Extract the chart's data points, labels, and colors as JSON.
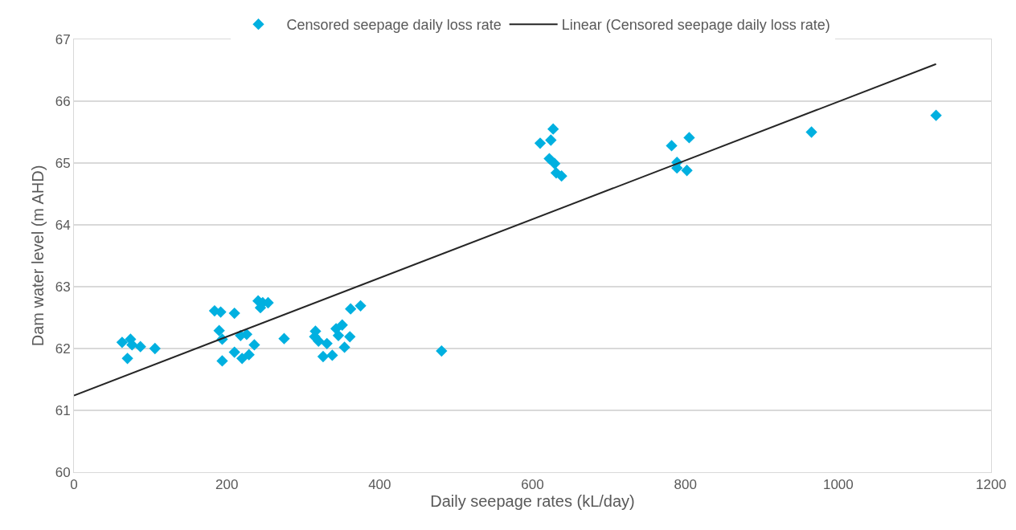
{
  "chart_data": {
    "type": "scatter",
    "xlabel": "Daily seepage rates (kL/day)",
    "ylabel": "Dam water level (m AHD)",
    "xlim": [
      0,
      1200
    ],
    "xticks": [
      0,
      200,
      400,
      600,
      800,
      1000,
      1200
    ],
    "ylim": [
      60,
      67
    ],
    "yticks": [
      60,
      61,
      62,
      63,
      64,
      65,
      66,
      67
    ],
    "grid": "y",
    "legend": "top",
    "marker": "diamond",
    "series": [
      {
        "name": "Censored seepage daily loss rate",
        "color": "#00b0e0",
        "x": [
          63,
          74,
          76,
          87,
          106,
          70,
          184,
          192,
          210,
          190,
          194,
          194,
          210,
          218,
          226,
          220,
          229,
          236,
          241,
          244,
          247,
          254,
          275,
          316,
          315,
          320,
          331,
          326,
          338,
          343,
          351,
          346,
          361,
          354,
          362,
          375,
          481,
          610,
          627,
          624,
          622,
          629,
          631,
          638,
          782,
          805,
          789,
          789,
          802,
          965,
          1128
        ],
        "values": [
          62.1,
          62.15,
          62.06,
          62.03,
          62.0,
          61.84,
          62.61,
          62.59,
          62.57,
          62.29,
          62.15,
          61.8,
          61.94,
          62.21,
          62.23,
          61.84,
          61.9,
          62.06,
          62.77,
          62.66,
          62.74,
          62.74,
          62.16,
          62.28,
          62.19,
          62.12,
          62.08,
          61.87,
          61.89,
          62.32,
          62.38,
          62.21,
          62.19,
          62.02,
          62.64,
          62.69,
          61.96,
          65.32,
          65.55,
          65.37,
          65.07,
          64.99,
          64.84,
          64.79,
          65.28,
          65.41,
          65.01,
          64.92,
          64.88,
          65.5,
          65.77
        ]
      },
      {
        "name": "Linear (Censored seepage daily loss rate)",
        "color": "#262626",
        "type": "line",
        "line_style": "solid",
        "marker": "none",
        "x": [
          0,
          1128
        ],
        "values": [
          61.24,
          66.6
        ]
      }
    ]
  }
}
